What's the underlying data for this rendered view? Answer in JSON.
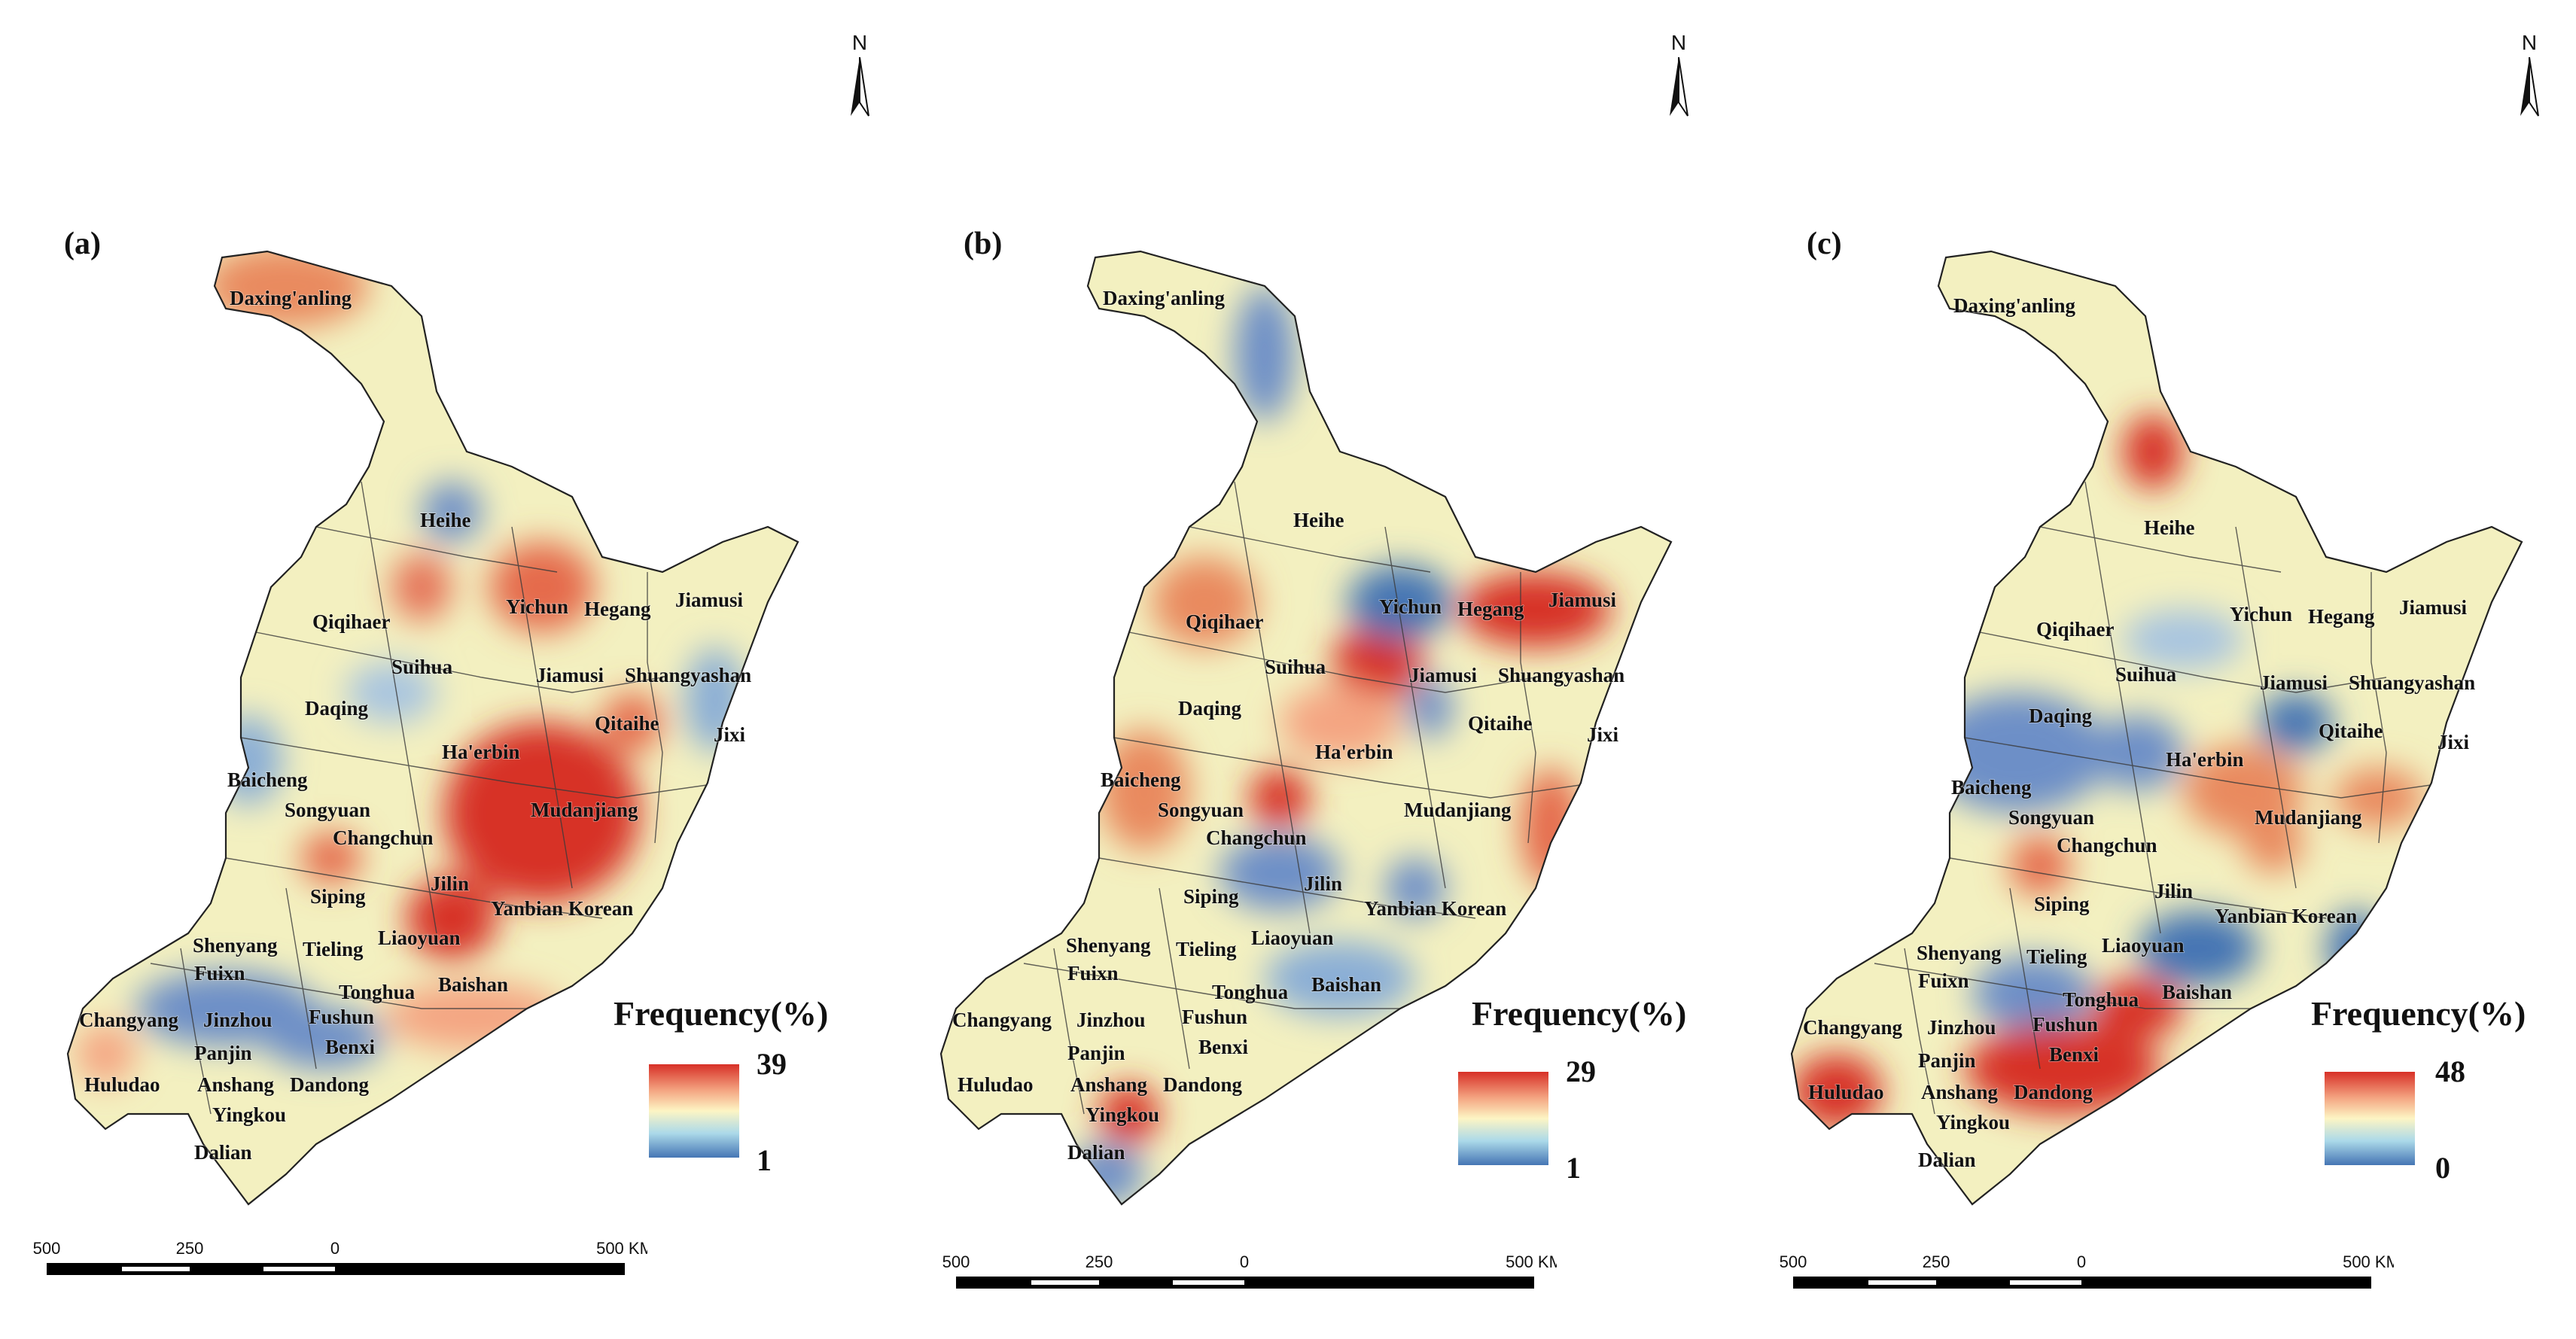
{
  "panels": [
    {
      "letter": "(a)",
      "north_label": "N",
      "legend": {
        "title": "Frequency(%)",
        "max": "39",
        "min": "1"
      },
      "scale": {
        "labels": [
          "500",
          "250",
          "0",
          "500 KM"
        ]
      },
      "cities": [
        "Daxing'anling",
        "Heihe",
        "Qiqihaer",
        "Yichun",
        "Hegang",
        "Jiamusi",
        "Suihua",
        "Jiamusi",
        "Shuangyashan",
        "Daqing",
        "Qitaihe",
        "Jixi",
        "Ha'erbin",
        "Baicheng",
        "Songyuan",
        "Mudanjiang",
        "Changchun",
        "Jilin",
        "Siping",
        "Yanbian Korean",
        "Liaoyuan",
        "Shenyang",
        "Tieling",
        "Fuixn",
        "Tonghua",
        "Baishan",
        "Changyang",
        "Jinzhou",
        "Fushun",
        "Panjin",
        "Benxi",
        "Huludao",
        "Anshang",
        "Dandong",
        "Yingkou",
        "Dalian"
      ],
      "colors": {
        "hot": "#d73027",
        "warm": "#f4a582",
        "neutral": "#fdf5c4",
        "cool": "#4575b4"
      }
    },
    {
      "letter": "(b)",
      "north_label": "N",
      "legend": {
        "title": "Frequency(%)",
        "max": "29",
        "min": "1"
      },
      "scale": {
        "labels": [
          "500",
          "250",
          "0",
          "500 KM"
        ]
      },
      "cities": [
        "Daxing'anling",
        "Heihe",
        "Qiqihaer",
        "Yichun",
        "Hegang",
        "Jiamusi",
        "Suihua",
        "Jiamusi",
        "Shuangyashan",
        "Daqing",
        "Qitaihe",
        "Jixi",
        "Ha'erbin",
        "Baicheng",
        "Songyuan",
        "Mudanjiang",
        "Changchun",
        "Jilin",
        "Siping",
        "Yanbian Korean",
        "Liaoyuan",
        "Shenyang",
        "Tieling",
        "Fuixn",
        "Tonghua",
        "Baishan",
        "Changyang",
        "Jinzhou",
        "Fushun",
        "Panjin",
        "Benxi",
        "Huludao",
        "Anshang",
        "Dandong",
        "Yingkou",
        "Dalian"
      ],
      "colors": {
        "hot": "#d73027",
        "warm": "#f4a582",
        "neutral": "#fdf5c4",
        "cool": "#4575b4"
      }
    },
    {
      "letter": "(c)",
      "north_label": "N",
      "legend": {
        "title": "Frequency(%)",
        "max": "48",
        "min": "0"
      },
      "scale": {
        "labels": [
          "500",
          "250",
          "0",
          "500 KM"
        ]
      },
      "cities": [
        "Daxing'anling",
        "Heihe",
        "Qiqihaer",
        "Yichun",
        "Hegang",
        "Jiamusi",
        "Suihua",
        "Jiamusi",
        "Shuangyashan",
        "Daqing",
        "Qitaihe",
        "Jixi",
        "Ha'erbin",
        "Baicheng",
        "Songyuan",
        "Mudanjiang",
        "Changchun",
        "Jilin",
        "Siping",
        "Yanbian Korean",
        "Liaoyuan",
        "Shenyang",
        "Tieling",
        "Fuixn",
        "Tonghua",
        "Baishan",
        "Changyang",
        "Jinzhou",
        "Fushun",
        "Panjin",
        "Benxi",
        "Huludao",
        "Anshang",
        "Dandong",
        "Yingkou",
        "Dalian"
      ],
      "colors": {
        "hot": "#d73027",
        "warm": "#f4a582",
        "neutral": "#fdf5c4",
        "cool": "#4575b4"
      }
    }
  ]
}
